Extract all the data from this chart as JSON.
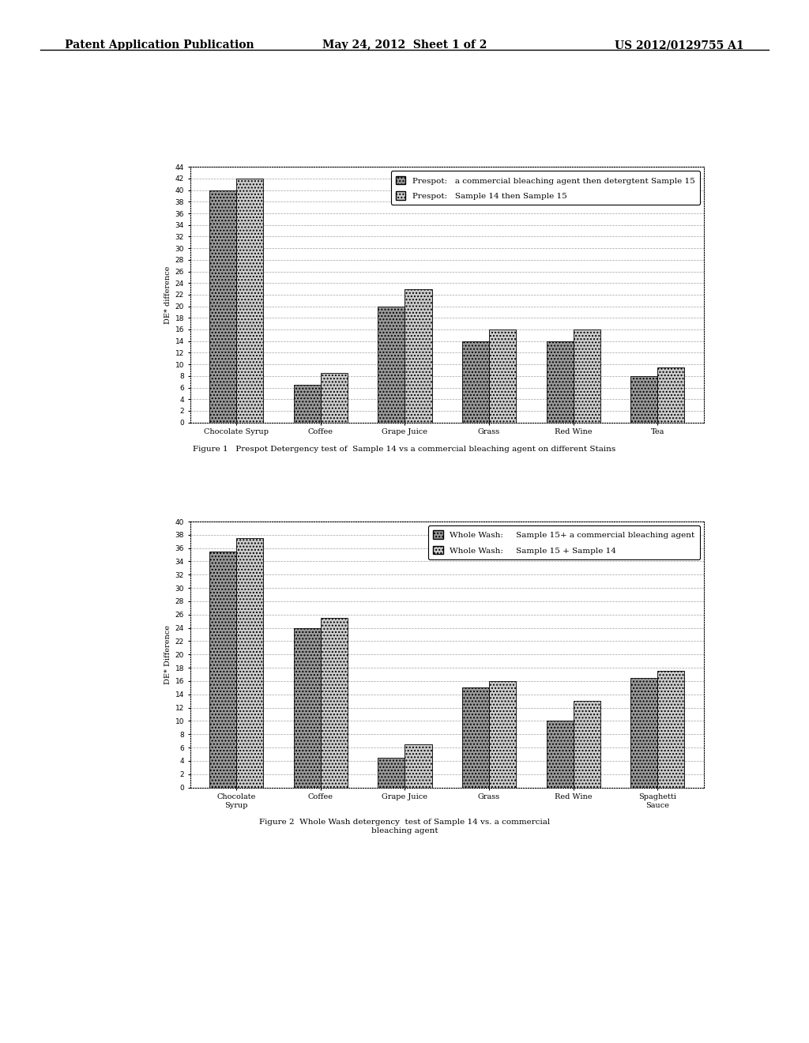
{
  "fig1": {
    "categories": [
      "Chocolate Syrup",
      "Coffee",
      "Grape Juice",
      "Grass",
      "Red Wine",
      "Tea"
    ],
    "series1": [
      40.0,
      6.5,
      20.0,
      14.0,
      14.0,
      8.0
    ],
    "series2": [
      42.0,
      8.5,
      23.0,
      16.0,
      16.0,
      9.5
    ],
    "legend1": "Prespot:   a commercial bleaching agent then detergtent Sample 15",
    "legend2": "Prespot:   Sample 14 then Sample 15",
    "ylabel": "DE* difference",
    "ylim": [
      0,
      44
    ],
    "yticks": [
      0,
      2,
      4,
      6,
      8,
      10,
      12,
      14,
      16,
      18,
      20,
      22,
      24,
      26,
      28,
      30,
      32,
      34,
      36,
      38,
      40,
      42,
      44
    ],
    "caption": "Figure 1   Prespot Detergency test of  Sample 14 vs a commercial bleaching agent on different Stains"
  },
  "fig2": {
    "categories": [
      "Chocolate\nSyrup",
      "Coffee",
      "Grape Juice",
      "Grass",
      "Red Wine",
      "Spaghetti\nSauce"
    ],
    "series1": [
      35.5,
      24.0,
      4.5,
      15.0,
      10.0,
      16.5
    ],
    "series2": [
      37.5,
      25.5,
      6.5,
      16.0,
      13.0,
      17.5
    ],
    "legend1": "Whole Wash:     Sample 15+ a commercial bleaching agent",
    "legend2": "Whole Wash:     Sample 15 + Sample 14",
    "ylabel": "DE* Difference",
    "ylim": [
      0,
      40
    ],
    "yticks": [
      0,
      2,
      4,
      6,
      8,
      10,
      12,
      14,
      16,
      18,
      20,
      22,
      24,
      26,
      28,
      30,
      32,
      34,
      36,
      38,
      40
    ],
    "caption": "Figure 2  Whole Wash detergency  test of Sample 14 vs. a commercial\nbleaching agent"
  },
  "header_left": "Patent Application Publication",
  "header_mid": "May 24, 2012  Sheet 1 of 2",
  "header_right": "US 2012/0129755 A1",
  "bg_color": "#ffffff",
  "bar_color1": "#aaaaaa",
  "bar_color2": "#dddddd",
  "hatch1": "....",
  "hatch2": "....",
  "grid_color": "#999999",
  "chart_bg": "#ffffff"
}
